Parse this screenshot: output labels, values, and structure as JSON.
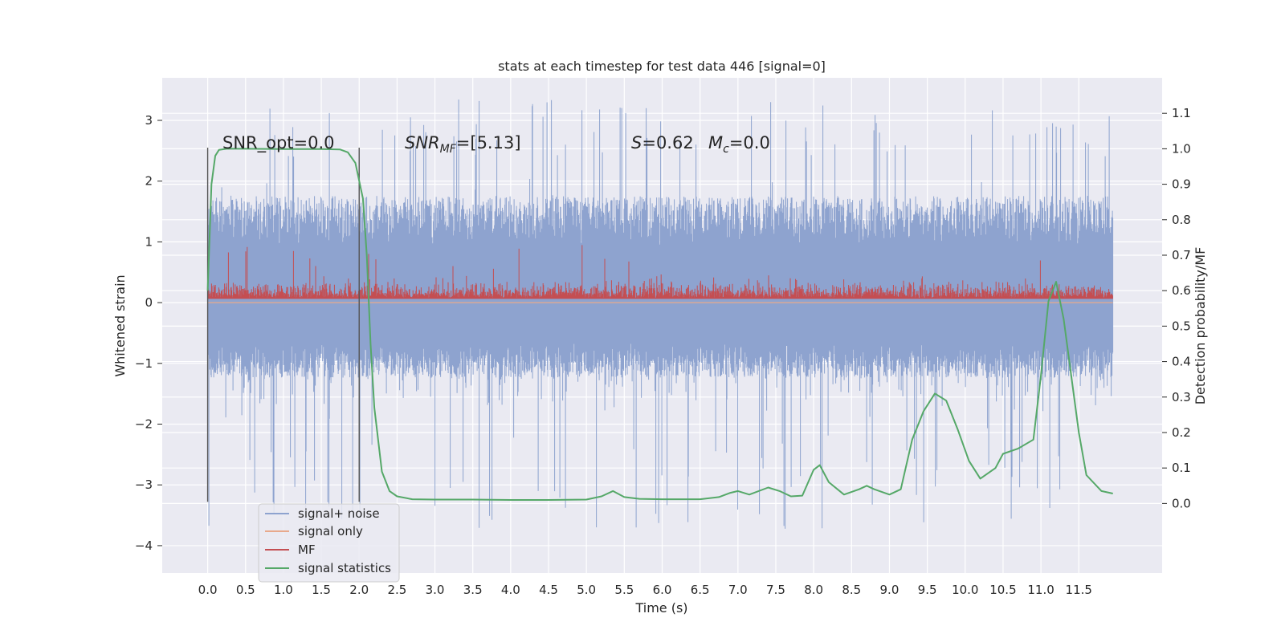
{
  "chart_data": {
    "type": "line",
    "title": "stats at each timestep for test data 446 [signal=0]",
    "xlabel": "Time (s)",
    "ylabel": "Whitened strain",
    "ylabel_right": "Detection probability/MF",
    "xlim": [
      -0.6,
      12.6
    ],
    "ylim": [
      -4.45,
      3.7
    ],
    "ylim_right": [
      -0.196,
      1.2
    ],
    "xticks": [
      "0.0",
      "0.5",
      "1.0",
      "1.5",
      "2.0",
      "2.5",
      "3.0",
      "3.5",
      "4.0",
      "4.5",
      "5.0",
      "5.5",
      "6.0",
      "6.5",
      "7.0",
      "7.5",
      "8.0",
      "8.5",
      "9.0",
      "9.5",
      "10.0",
      "10.5",
      "11.0",
      "11.5"
    ],
    "yticks_left": [
      "3",
      "2",
      "1",
      "0",
      "−1",
      "−2",
      "−3",
      "−4"
    ],
    "yticks_right": [
      "1.1",
      "1.0",
      "0.9",
      "0.8",
      "0.7",
      "0.6",
      "0.5",
      "0.4",
      "0.3",
      "0.2",
      "0.1",
      "0.0"
    ],
    "grid": true,
    "legend_placement": "lower-left",
    "annotations": {
      "snr_opt": "SNR_opt=0.0",
      "snr_mf_pre": "SNR",
      "snr_mf_sub": "MF",
      "snr_mf_post": "=[5.13]",
      "s_pre": "S",
      "s_post": "=0.62",
      "mc_pre": "M",
      "mc_sub": "c",
      "mc_post": "=0.0"
    },
    "window_markers_x": [
      0.0,
      2.0
    ],
    "series": [
      {
        "name": "signal+ noise",
        "color": "#8ea3cf",
        "axis": "left",
        "x_range": [
          0.0,
          11.95
        ],
        "envelope_left": {
          "core": [
            -0.95,
            1.35
          ],
          "typical": [
            -2.3,
            2.4
          ],
          "max": 3.35,
          "min": -4.1
        }
      },
      {
        "name": "signal only",
        "color": "#e8a98c",
        "axis": "left",
        "x_range": [
          0.0,
          11.95
        ],
        "values": [
          0.0
        ]
      },
      {
        "name": "MF",
        "color": "#c44e52",
        "axis": "right",
        "x_range": [
          0.0,
          11.95
        ],
        "envelope_right": {
          "base": 0.58,
          "typical": [
            0.58,
            0.66
          ],
          "max": 0.73
        }
      },
      {
        "name": "signal statistics",
        "color": "#55a868",
        "axis": "right",
        "x": [
          0.0,
          0.05,
          0.1,
          0.15,
          0.25,
          0.5,
          1.0,
          1.5,
          1.75,
          1.85,
          1.95,
          2.05,
          2.1,
          2.15,
          2.2,
          2.3,
          2.4,
          2.5,
          2.7,
          3.0,
          3.5,
          4.0,
          4.5,
          5.0,
          5.2,
          5.35,
          5.5,
          5.7,
          6.0,
          6.5,
          6.75,
          6.9,
          7.0,
          7.15,
          7.4,
          7.55,
          7.7,
          7.85,
          8.0,
          8.08,
          8.2,
          8.4,
          8.6,
          8.7,
          8.8,
          9.0,
          9.15,
          9.3,
          9.45,
          9.6,
          9.75,
          9.9,
          10.05,
          10.2,
          10.4,
          10.5,
          10.7,
          10.9,
          11.0,
          11.1,
          11.2,
          11.3,
          11.5,
          11.6,
          11.8,
          11.95
        ],
        "values": [
          0.6,
          0.9,
          0.98,
          0.997,
          1.0,
          1.0,
          0.999,
          0.999,
          0.998,
          0.99,
          0.96,
          0.86,
          0.7,
          0.45,
          0.27,
          0.09,
          0.035,
          0.02,
          0.012,
          0.011,
          0.011,
          0.01,
          0.01,
          0.011,
          0.02,
          0.035,
          0.018,
          0.013,
          0.012,
          0.012,
          0.018,
          0.03,
          0.035,
          0.025,
          0.045,
          0.035,
          0.02,
          0.022,
          0.095,
          0.108,
          0.06,
          0.025,
          0.04,
          0.05,
          0.04,
          0.025,
          0.04,
          0.18,
          0.26,
          0.31,
          0.29,
          0.21,
          0.12,
          0.07,
          0.1,
          0.14,
          0.155,
          0.18,
          0.36,
          0.57,
          0.625,
          0.52,
          0.2,
          0.08,
          0.035,
          0.028
        ]
      }
    ]
  }
}
